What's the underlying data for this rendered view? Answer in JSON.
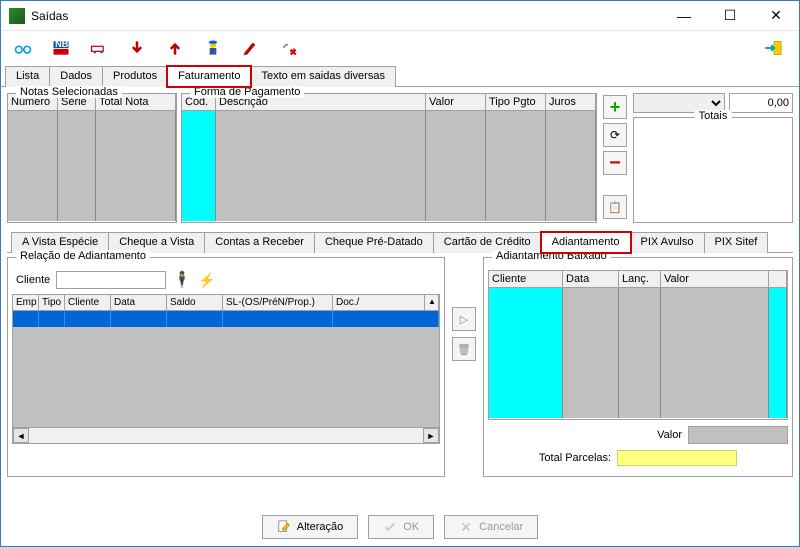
{
  "window": {
    "title": "Saídas"
  },
  "tabs1": {
    "items": [
      "Lista",
      "Dados",
      "Produtos",
      "Faturamento",
      "Texto em saidas diversas"
    ],
    "active": 3,
    "highlighted": 3
  },
  "top": {
    "notas": {
      "title": "Notas Selecionadas",
      "cols": [
        "Número",
        "Série",
        "Total Nota"
      ]
    },
    "forma": {
      "title": "Forma de Pagamento",
      "cols": [
        "Cod.",
        "Descrição",
        "Valor",
        "Tipo Pgto",
        "Juros"
      ]
    },
    "right": {
      "amount": "0,00",
      "totais_title": "Totais"
    }
  },
  "tabs2": {
    "items": [
      "A Vista Espécie",
      "Cheque a Vista",
      "Contas a Receber",
      "Cheque Pré-Datado",
      "Cartão de Crédito",
      "Adiantamento",
      "PIX Avulso",
      "PIX Sitef"
    ],
    "active": 5,
    "highlighted": 5
  },
  "mid": {
    "left": {
      "title": "Relação de Adiantamento",
      "cliente_label": "Cliente",
      "cols": [
        "Emp",
        "Tipo",
        "Cliente",
        "Data",
        "Saldo",
        "SL-(OS/PréN/Prop.)",
        "Doc./"
      ]
    },
    "right": {
      "title": "Adiantamento Baixado",
      "cols": [
        "Cliente",
        "Data",
        "Lanç.",
        "Valor",
        ""
      ],
      "valor_label": "Valor",
      "parcelas_label": "Total Parcelas:"
    }
  },
  "footer": {
    "alteracao": "Alteração",
    "ok": "OK",
    "cancelar": "Cancelar"
  },
  "colors": {
    "cyan": "#00ffff",
    "blue": "#0066d6",
    "gridbg": "#c0c0c0",
    "highlight": "#d00000",
    "yellow": "#ffff80"
  }
}
